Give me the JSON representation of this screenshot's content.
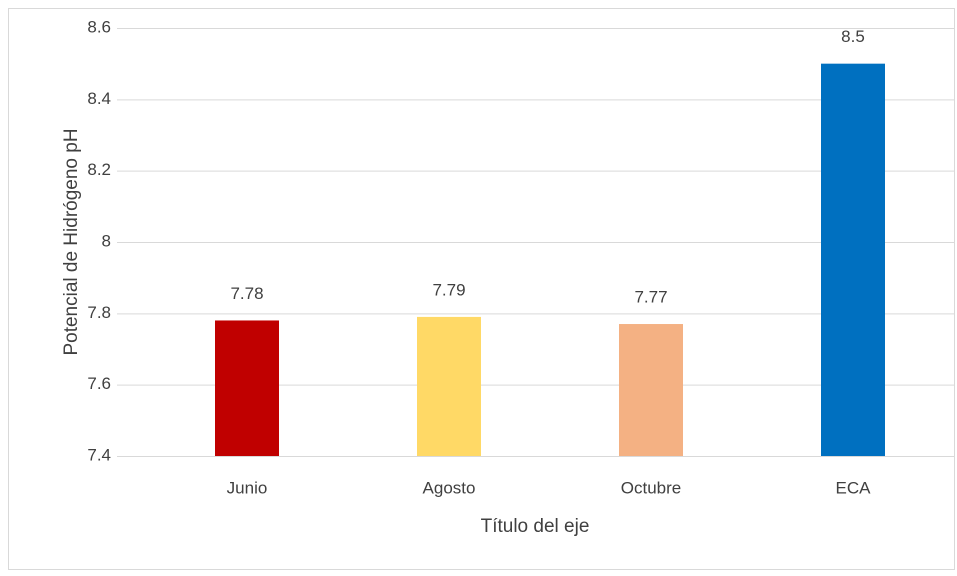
{
  "chart_data": {
    "type": "bar",
    "categories": [
      "Junio",
      "Agosto",
      "Octubre",
      "ECA"
    ],
    "values": [
      7.78,
      7.79,
      7.77,
      8.5
    ],
    "colors": [
      "#c00000",
      "#ffd966",
      "#f4b183",
      "#0070c0"
    ],
    "ylim": [
      7.4,
      8.6
    ],
    "yticks": [
      7.4,
      7.6,
      7.8,
      8,
      8.2,
      8.4,
      8.6
    ],
    "grid": true,
    "x_label": "Título del eje",
    "y_label": "Potencial de Hidrógeno pH"
  }
}
